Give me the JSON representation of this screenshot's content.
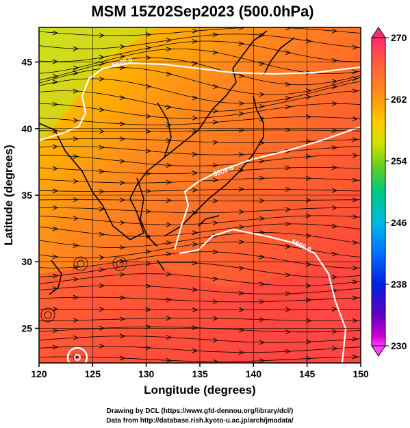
{
  "title": "MSM 15Z02Sep2023 (500.0hPa)",
  "x_axis": {
    "label": "Longitude (degrees)",
    "range": [
      120,
      150
    ],
    "ticks": [
      "120",
      "125",
      "130",
      "135",
      "140",
      "145",
      "150"
    ]
  },
  "y_axis": {
    "label": "Latitude  (degrees)",
    "range": [
      22.4,
      47.6
    ],
    "ticks": [
      "25",
      "30",
      "35",
      "40",
      "45"
    ]
  },
  "colorbar": {
    "range": [
      230,
      270
    ],
    "tick_labels": [
      "270",
      "262",
      "254",
      "246",
      "238",
      "230"
    ],
    "colors": [
      "#ff2d6e",
      "#ff5a3c",
      "#ff7a22",
      "#ffb000",
      "#e8e000",
      "#8ad400",
      "#00c870",
      "#00c8d8",
      "#0080ff",
      "#0030e0",
      "#4000c0",
      "#c000c0",
      "#ff40ff"
    ]
  },
  "contours": [
    {
      "label": "5880.0"
    },
    {
      "label": "5900.0"
    },
    {
      "label": "5860.0"
    }
  ],
  "credits": {
    "line1": "Drawing by DCL (https://www.gfd-dennou.org/library/dcl/)",
    "line2": "Data from http://database.rish.kyoto-u.ac.jp/arch/jmadata/"
  }
}
